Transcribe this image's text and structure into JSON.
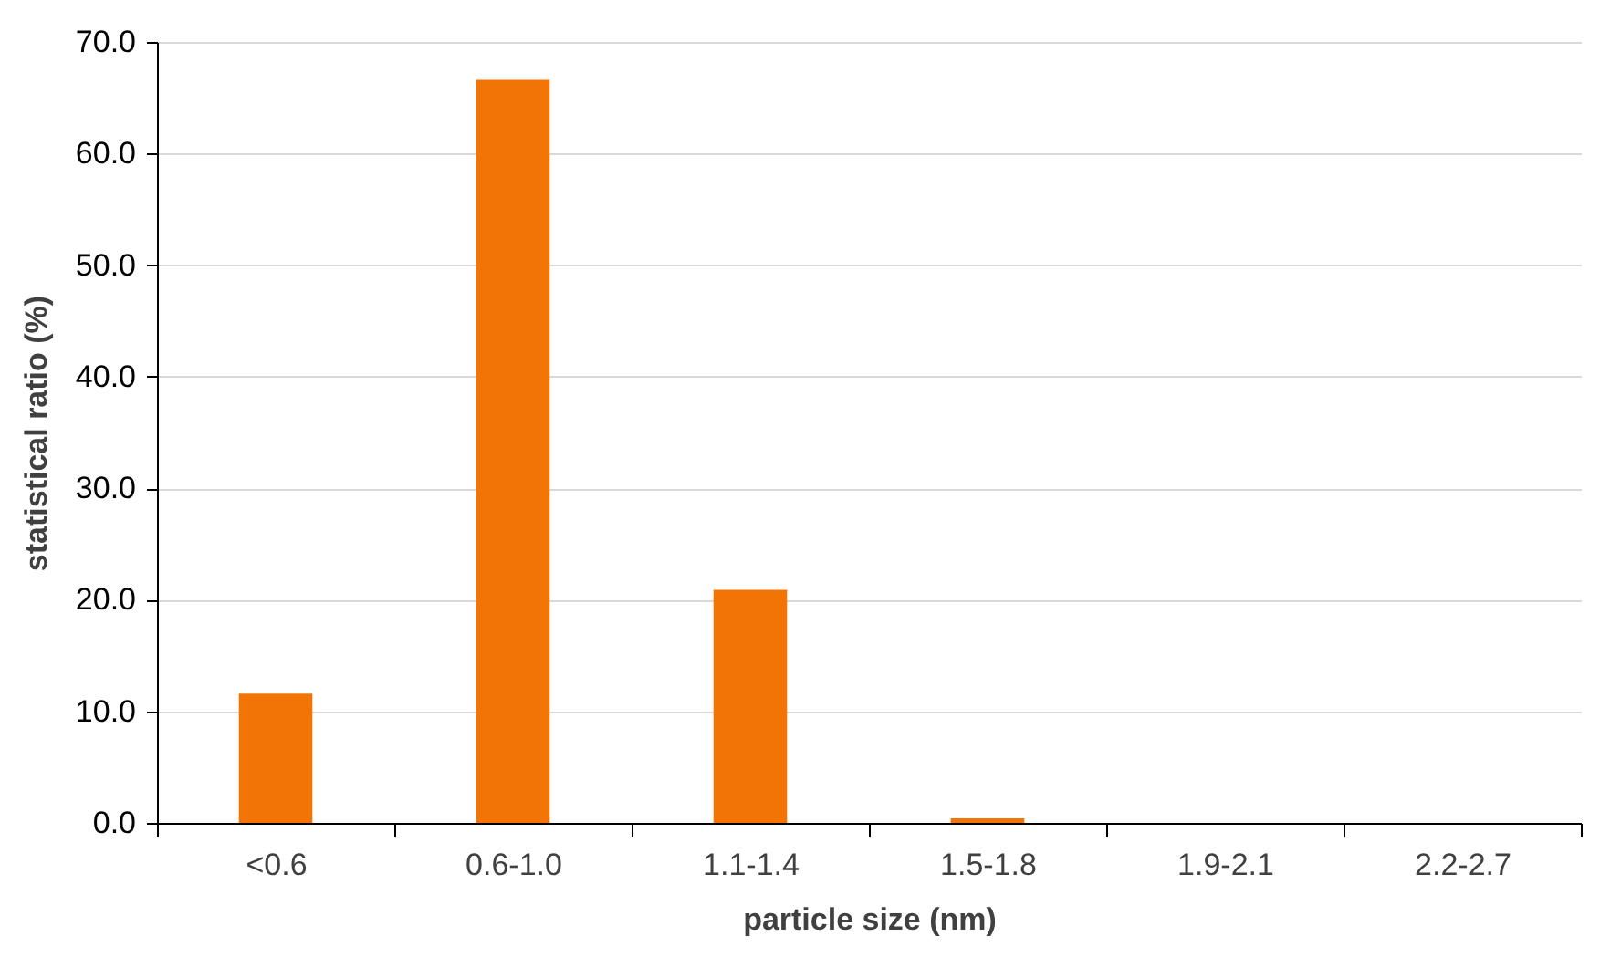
{
  "chart_data": {
    "type": "bar",
    "xlabel": "particle size (nm)",
    "ylabel": "statistical ratio (%)",
    "categories": [
      "<0.6",
      "0.6-1.0",
      "1.1-1.4",
      "1.5-1.8",
      "1.9-2.1",
      "2.2-2.7"
    ],
    "values": [
      11.6,
      66.6,
      20.9,
      0.4,
      0,
      0
    ],
    "color": "#f27405",
    "ylim": [
      0,
      70
    ],
    "yticks": [
      {
        "value": 0,
        "label": "0.0"
      },
      {
        "value": 10,
        "label": "10.0"
      },
      {
        "value": 20,
        "label": "20.0"
      },
      {
        "value": 30,
        "label": "30.0"
      },
      {
        "value": 40,
        "label": "40.0"
      },
      {
        "value": 50,
        "label": "50.0"
      },
      {
        "value": 60,
        "label": "60.0"
      },
      {
        "value": 70,
        "label": "70.0"
      }
    ],
    "grid": "y"
  }
}
